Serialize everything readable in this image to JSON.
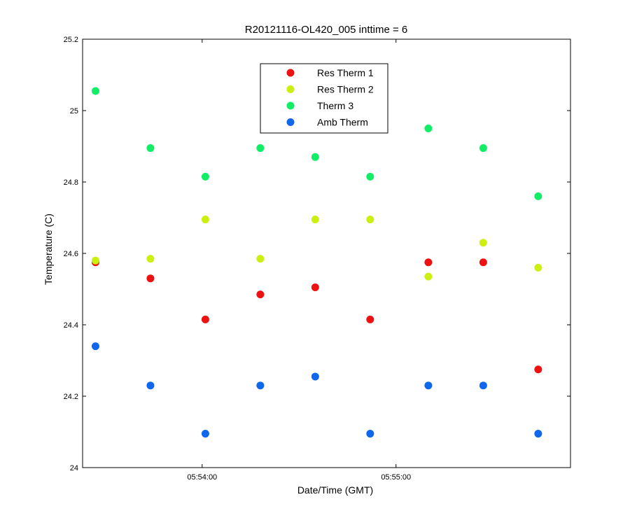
{
  "chart_data": {
    "type": "scatter",
    "title": "R20121116-OL420_005 inttime = 6",
    "xlabel": "Date/Time (GMT)",
    "ylabel": "Temperature (C)",
    "ylim": [
      24,
      25.2
    ],
    "yticks": [
      "24",
      "24.2",
      "24.4",
      "24.6",
      "24.8",
      "25",
      "25.2"
    ],
    "xlim": [
      "05:53:23",
      "05:55:54"
    ],
    "xticks": [
      "05:54:00",
      "05:55:00"
    ],
    "grid": false,
    "legend_position": "top-center",
    "x": [
      "05:53:27",
      "05:53:44",
      "05:54:01",
      "05:54:18",
      "05:54:35",
      "05:54:52",
      "05:55:10",
      "05:55:27",
      "05:55:44"
    ],
    "series": [
      {
        "name": "Res Therm 1",
        "color": "#ee1111",
        "values": [
          24.575,
          24.53,
          24.415,
          24.485,
          24.505,
          24.415,
          24.575,
          24.575,
          24.275
        ]
      },
      {
        "name": "Res Therm 2",
        "color": "#ccee11",
        "values": [
          24.58,
          24.585,
          24.695,
          24.585,
          24.695,
          24.695,
          24.535,
          24.63,
          24.56
        ]
      },
      {
        "name": "Therm 3",
        "color": "#11ee66",
        "values": [
          25.055,
          24.895,
          24.815,
          24.895,
          24.87,
          24.815,
          24.95,
          24.895,
          24.76
        ]
      },
      {
        "name": "Amb Therm",
        "color": "#1166ee",
        "values": [
          24.34,
          24.23,
          24.095,
          24.23,
          24.255,
          24.095,
          24.23,
          24.23,
          24.095
        ]
      }
    ]
  }
}
